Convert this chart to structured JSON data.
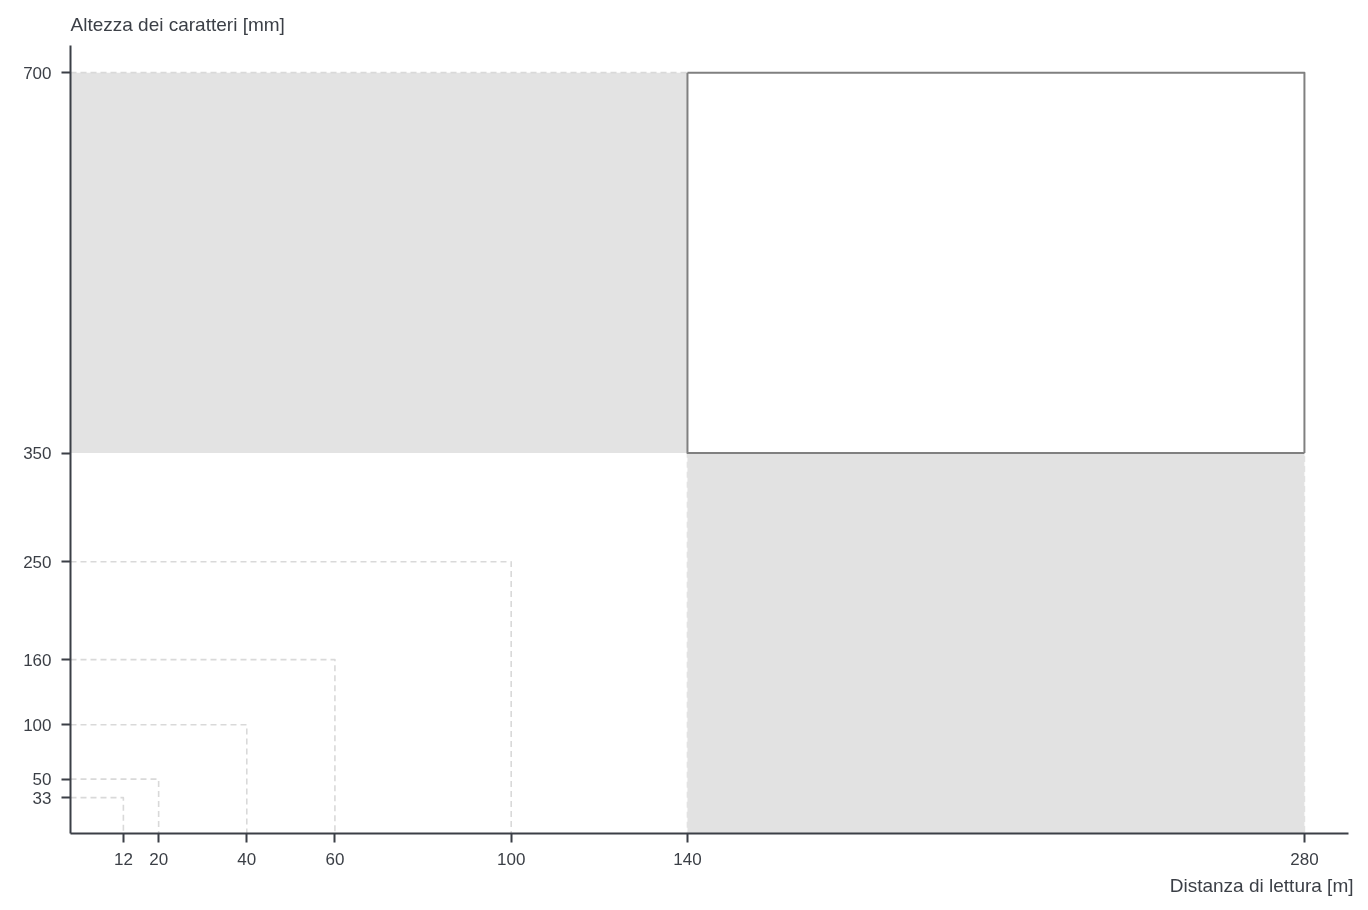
{
  "chart_data": {
    "type": "line",
    "xlabel": "Distanza di lettura [m]",
    "ylabel": "Altezza dei caratteri [mm]",
    "xlim": [
      0,
      290
    ],
    "ylim": [
      0,
      725
    ],
    "xticks": [
      12,
      20,
      40,
      60,
      100,
      140,
      280
    ],
    "yticks": [
      33,
      50,
      100,
      160,
      250,
      350,
      700
    ],
    "line_style": "dashed",
    "series": [
      {
        "color": "#d9d9d9",
        "x": [
          0,
          140
        ],
        "values": [
          700,
          700
        ],
        "lower": [
          350,
          350
        ],
        "upper": [
          700,
          700
        ]
      },
      {
        "type": "area",
        "color": "#e2e2e2",
        "x": [
          140,
          280
        ],
        "values": [
          350,
          350
        ]
      },
      {
        "color": "#d9d9d9",
        "x": [
          0,
          12,
          12
        ],
        "values": [
          33,
          33,
          0
        ]
      },
      {
        "color": "#d9d9d9",
        "x": [
          0,
          20,
          20
        ],
        "values": [
          50,
          50,
          0
        ]
      },
      {
        "color": "#d9d9d9",
        "x": [
          0,
          40,
          40
        ],
        "values": [
          100,
          100,
          0
        ]
      },
      {
        "color": "#d9d9d9",
        "x": [
          0,
          60,
          60
        ],
        "values": [
          160,
          160,
          0
        ]
      },
      {
        "color": "#d9d9d9",
        "x": [
          0,
          100,
          100
        ],
        "values": [
          250,
          250,
          0
        ]
      },
      {
        "color": "#808080",
        "line_style": "solid",
        "x": [
          140,
          280,
          280
        ],
        "values": [
          700,
          700,
          350
        ]
      },
      {
        "color": "#808080",
        "line_style": "solid",
        "x": [
          140,
          140,
          280
        ],
        "values": [
          700,
          350,
          350
        ]
      }
    ]
  }
}
